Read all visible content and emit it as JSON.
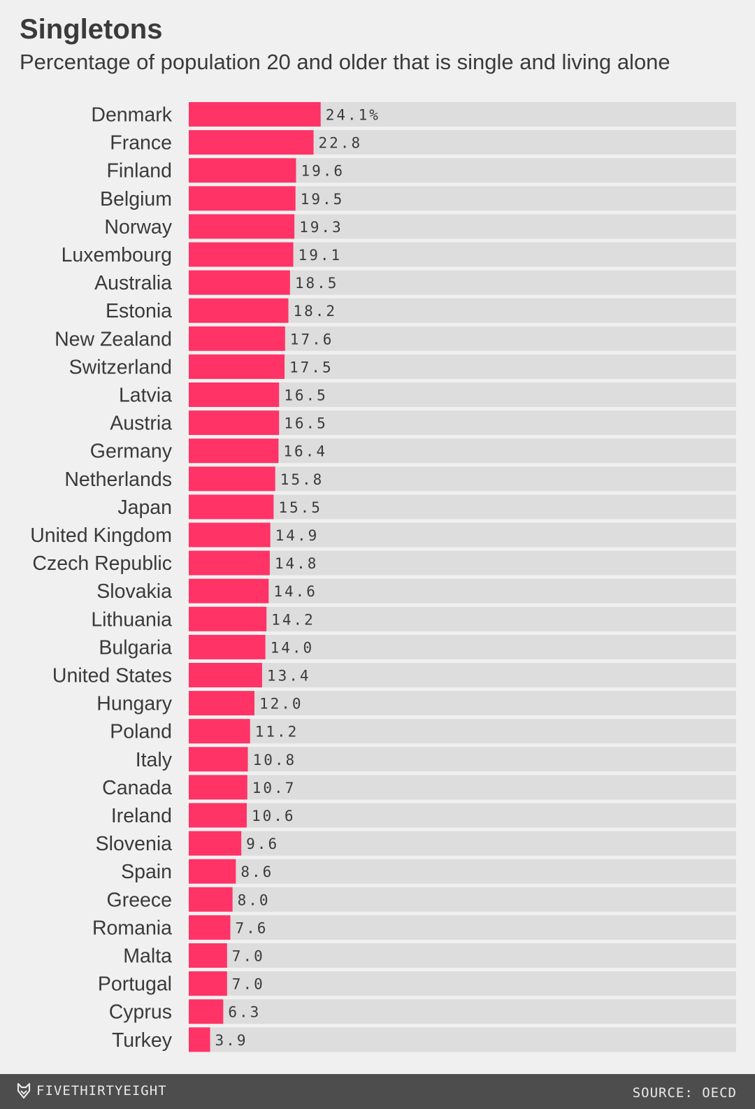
{
  "chart_data": {
    "type": "bar",
    "orientation": "horizontal",
    "title": "Singletons",
    "subtitle": "Percentage of population 20 and older that is single and living alone",
    "categories": [
      "Denmark",
      "France",
      "Finland",
      "Belgium",
      "Norway",
      "Luxembourg",
      "Australia",
      "Estonia",
      "New Zealand",
      "Switzerland",
      "Latvia",
      "Austria",
      "Germany",
      "Netherlands",
      "Japan",
      "United Kingdom",
      "Czech Republic",
      "Slovakia",
      "Lithuania",
      "Bulgaria",
      "United States",
      "Hungary",
      "Poland",
      "Italy",
      "Canada",
      "Ireland",
      "Slovenia",
      "Spain",
      "Greece",
      "Romania",
      "Malta",
      "Portugal",
      "Cyprus",
      "Turkey"
    ],
    "values": [
      24.1,
      22.8,
      19.6,
      19.5,
      19.3,
      19.1,
      18.5,
      18.2,
      17.6,
      17.5,
      16.5,
      16.5,
      16.4,
      15.8,
      15.5,
      14.9,
      14.8,
      14.6,
      14.2,
      14.0,
      13.4,
      12.0,
      11.2,
      10.8,
      10.7,
      10.6,
      9.6,
      8.6,
      8.0,
      7.6,
      7.0,
      7.0,
      6.3,
      3.9
    ],
    "value_labels": [
      "24.1%",
      "22.8",
      "19.6",
      "19.5",
      "19.3",
      "19.1",
      "18.5",
      "18.2",
      "17.6",
      "17.5",
      "16.5",
      "16.5",
      "16.4",
      "15.8",
      "15.5",
      "14.9",
      "14.8",
      "14.6",
      "14.2",
      "14.0",
      "13.4",
      "12.0",
      "11.2",
      "10.8",
      "10.7",
      "10.6",
      "9.6",
      "8.6",
      "8.0",
      "7.6",
      "7.0",
      "7.0",
      "6.3",
      "3.9"
    ],
    "xlim": [
      0,
      100
    ],
    "xlabel": "",
    "ylabel": "",
    "grid": false
  },
  "footer": {
    "brand": "FIVETHIRTYEIGHT",
    "source": "SOURCE: OECD"
  },
  "colors": {
    "bar": "#ff3366",
    "track": "#dddddd",
    "background": "#f0f0f0",
    "footer": "#4d4d4d"
  },
  "icons": {
    "brand_logo": "fox-icon"
  }
}
